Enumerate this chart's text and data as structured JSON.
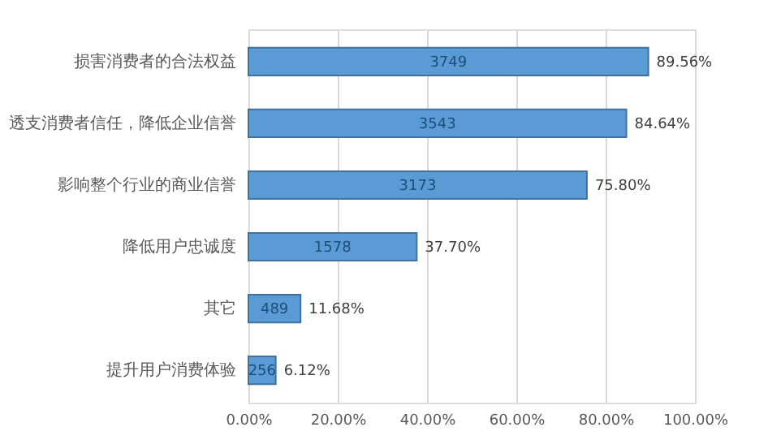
{
  "chart_data": {
    "type": "bar",
    "orientation": "horizontal",
    "categories": [
      "损害消费者的合法权益",
      "透支消费者信任，降低企业信誉",
      "影响整个行业的商业信誉",
      "降低用户忠诚度",
      "其它",
      "提升用户消费体验"
    ],
    "values": [
      89.56,
      84.64,
      75.8,
      37.7,
      11.68,
      6.12
    ],
    "value_labels": [
      "89.56%",
      "84.64%",
      "75.80%",
      "37.70%",
      "11.68%",
      "6.12%"
    ],
    "color": "#5b9bd5",
    "xlim": [
      0,
      100
    ],
    "xticks": [
      {
        "value": 0,
        "label": "0.00%"
      },
      {
        "value": 20,
        "label": "20.00%"
      },
      {
        "value": 40,
        "label": "40.00%"
      },
      {
        "value": 60,
        "label": "60.00%"
      },
      {
        "value": 80,
        "label": "80.00%"
      },
      {
        "value": 100,
        "label": "100.00%"
      }
    ],
    "grid": "x",
    "annotations": [
      "3749",
      "3543",
      "3173",
      "1578",
      "489",
      "256"
    ]
  }
}
